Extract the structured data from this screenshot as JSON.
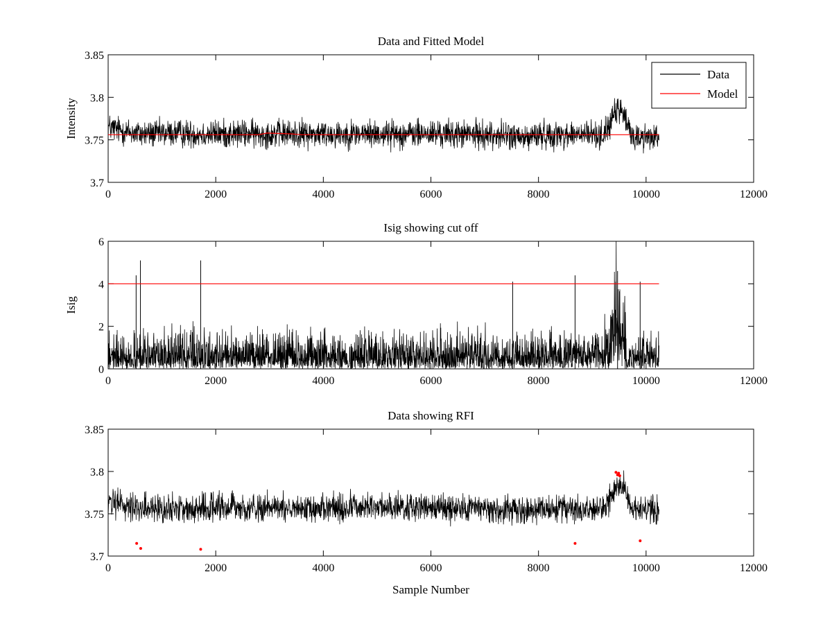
{
  "chart_data": [
    {
      "type": "line",
      "title": "Data and Fitted Model",
      "xlabel": "",
      "ylabel": "Intensity",
      "xlim": [
        0,
        12000
      ],
      "ylim": [
        3.7,
        3.85
      ],
      "xticks": [
        "0",
        "2000",
        "4000",
        "6000",
        "8000",
        "10000",
        "12000"
      ],
      "yticks": [
        "3.7",
        "3.75",
        "3.8",
        "3.85"
      ],
      "grid": false,
      "legend": {
        "position": "top-right",
        "entries": [
          "Data",
          "Model"
        ]
      },
      "series": [
        {
          "name": "Data",
          "color": "#000000",
          "style": "noisy-line",
          "n_samples": 10240,
          "noise_half_range": 0.018,
          "x": [
            0,
            300,
            600,
            900,
            1200,
            1500,
            1750,
            2000,
            3000,
            4000,
            5000,
            6000,
            7000,
            7500,
            7700,
            8000,
            8500,
            9000,
            9200,
            9300,
            9400,
            9500,
            9600,
            9700,
            9800,
            10000,
            10240
          ],
          "y": [
            3.765,
            3.76,
            3.757,
            3.757,
            3.758,
            3.757,
            3.757,
            3.757,
            3.757,
            3.757,
            3.757,
            3.757,
            3.756,
            3.755,
            3.751,
            3.756,
            3.756,
            3.756,
            3.756,
            3.765,
            3.778,
            3.786,
            3.778,
            3.758,
            3.753,
            3.753,
            3.756
          ]
        },
        {
          "name": "Model",
          "color": "#ff0000",
          "style": "line",
          "x": [
            0,
            2800,
            2950,
            3400,
            3600,
            10240
          ],
          "y": [
            3.756,
            3.756,
            3.758,
            3.757,
            3.756,
            3.756
          ]
        }
      ]
    },
    {
      "type": "line",
      "title": "Isig showing cut off",
      "xlabel": "",
      "ylabel": "Isig",
      "xlim": [
        0,
        12000
      ],
      "ylim": [
        0,
        6
      ],
      "xticks": [
        "0",
        "2000",
        "4000",
        "6000",
        "8000",
        "10000",
        "12000"
      ],
      "yticks": [
        "0",
        "2",
        "4",
        "6"
      ],
      "grid": false,
      "series": [
        {
          "color": "#000000",
          "style": "noisy-abs",
          "n_samples": 10240,
          "typical_max": 1.8,
          "envelope": {
            "x": [
              0,
              9200,
              9300,
              9400,
              9500,
              9600,
              9650,
              9700,
              10240
            ],
            "y": [
              1.0,
              1.0,
              1.5,
              2.6,
              3.4,
              2.2,
              0.3,
              1.0,
              1.0
            ]
          },
          "spikes": [
            {
              "x": 520,
              "y": 4.4
            },
            {
              "x": 600,
              "y": 5.1
            },
            {
              "x": 1720,
              "y": 5.1
            },
            {
              "x": 7520,
              "y": 4.1
            },
            {
              "x": 8680,
              "y": 4.4
            },
            {
              "x": 9470,
              "y": 4.6
            },
            {
              "x": 9890,
              "y": 4.1
            }
          ]
        },
        {
          "color": "#ff0000",
          "style": "line",
          "x": [
            0,
            10240
          ],
          "y": [
            4,
            4
          ]
        }
      ]
    },
    {
      "type": "line",
      "title": "Data showing RFI",
      "xlabel": "Sample Number",
      "ylabel": "",
      "xlim": [
        0,
        12000
      ],
      "ylim": [
        3.7,
        3.85
      ],
      "xticks": [
        "0",
        "2000",
        "4000",
        "6000",
        "8000",
        "10000",
        "12000"
      ],
      "yticks": [
        "3.7",
        "3.75",
        "3.8",
        "3.85"
      ],
      "grid": false,
      "series": [
        {
          "color": "#000000",
          "style": "noisy-line",
          "n_samples": 10240,
          "noise_half_range": 0.018,
          "x": [
            0,
            300,
            600,
            900,
            1200,
            1500,
            1750,
            2000,
            3000,
            4000,
            5000,
            6000,
            7000,
            7500,
            7700,
            8000,
            8500,
            9000,
            9200,
            9300,
            9400,
            9500,
            9600,
            9700,
            9800,
            10000,
            10240
          ],
          "y": [
            3.765,
            3.76,
            3.757,
            3.757,
            3.758,
            3.757,
            3.757,
            3.757,
            3.757,
            3.757,
            3.757,
            3.757,
            3.756,
            3.755,
            3.751,
            3.756,
            3.756,
            3.756,
            3.756,
            3.765,
            3.778,
            3.786,
            3.778,
            3.758,
            3.753,
            3.753,
            3.756
          ]
        },
        {
          "color": "#ff0000",
          "style": "markers",
          "x": [
            530,
            605,
            1720,
            8680,
            9440,
            9470,
            9490,
            9510,
            9890
          ],
          "y": [
            3.715,
            3.709,
            3.708,
            3.715,
            3.799,
            3.796,
            3.798,
            3.795,
            3.718
          ]
        }
      ]
    }
  ]
}
